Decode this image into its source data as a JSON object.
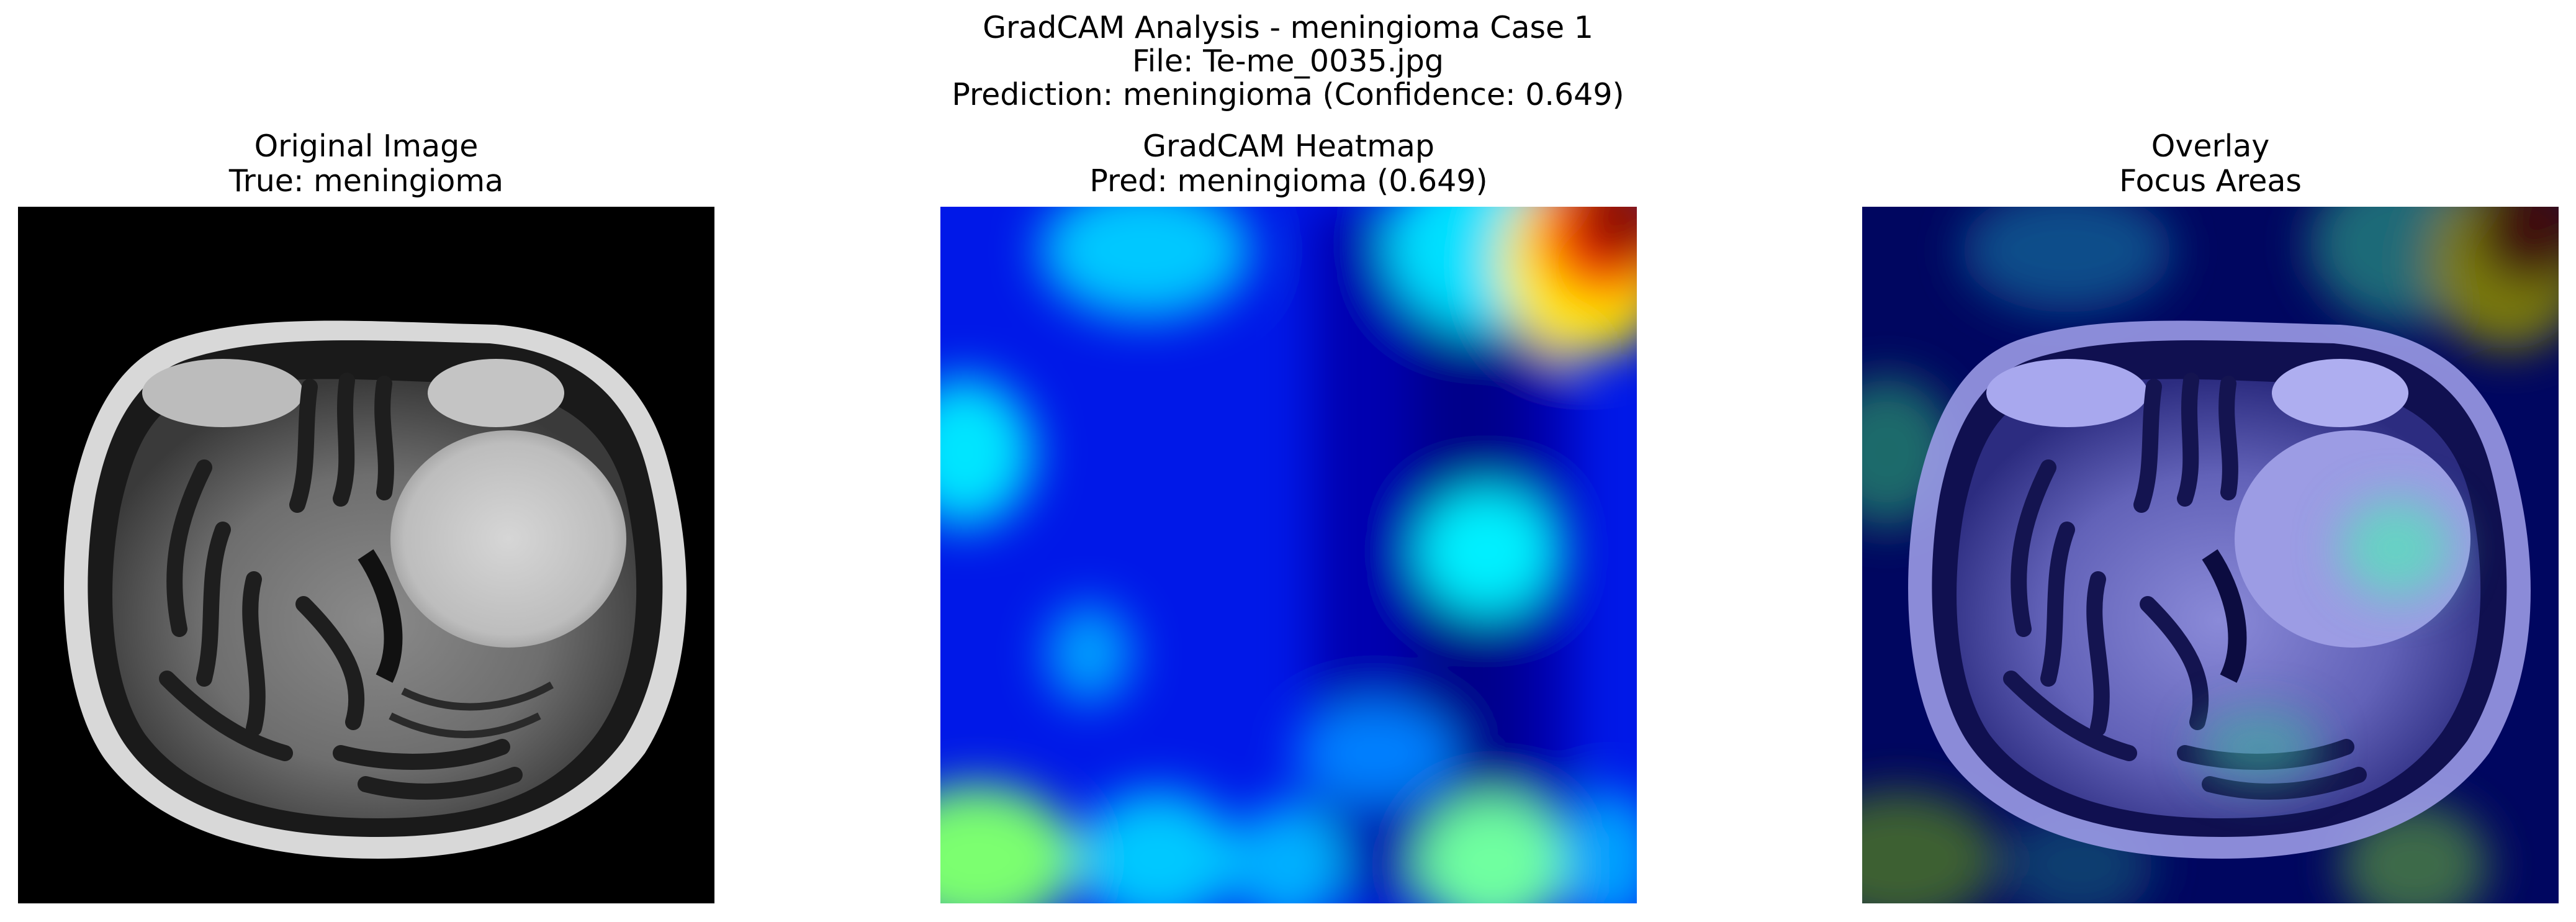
{
  "figure": {
    "title_line1": "GradCAM Analysis - meningioma Case 1",
    "title_line2": "File: Te-me_0035.jpg",
    "title_line3": "Prediction: meningioma (Confidence: 0.649)"
  },
  "panels": [
    {
      "title_line1": "Original Image",
      "title_line2": "True: meningioma"
    },
    {
      "title_line1": "GradCAM Heatmap",
      "title_line2": "Pred: meningioma (0.649)"
    },
    {
      "title_line1": "Overlay",
      "title_line2": "Focus Areas"
    }
  ],
  "colors": {
    "heatmap_low": "#0000a0",
    "heatmap_mid": "#00e5ff",
    "heatmap_high": "#800000",
    "mri_background": "#000000"
  }
}
